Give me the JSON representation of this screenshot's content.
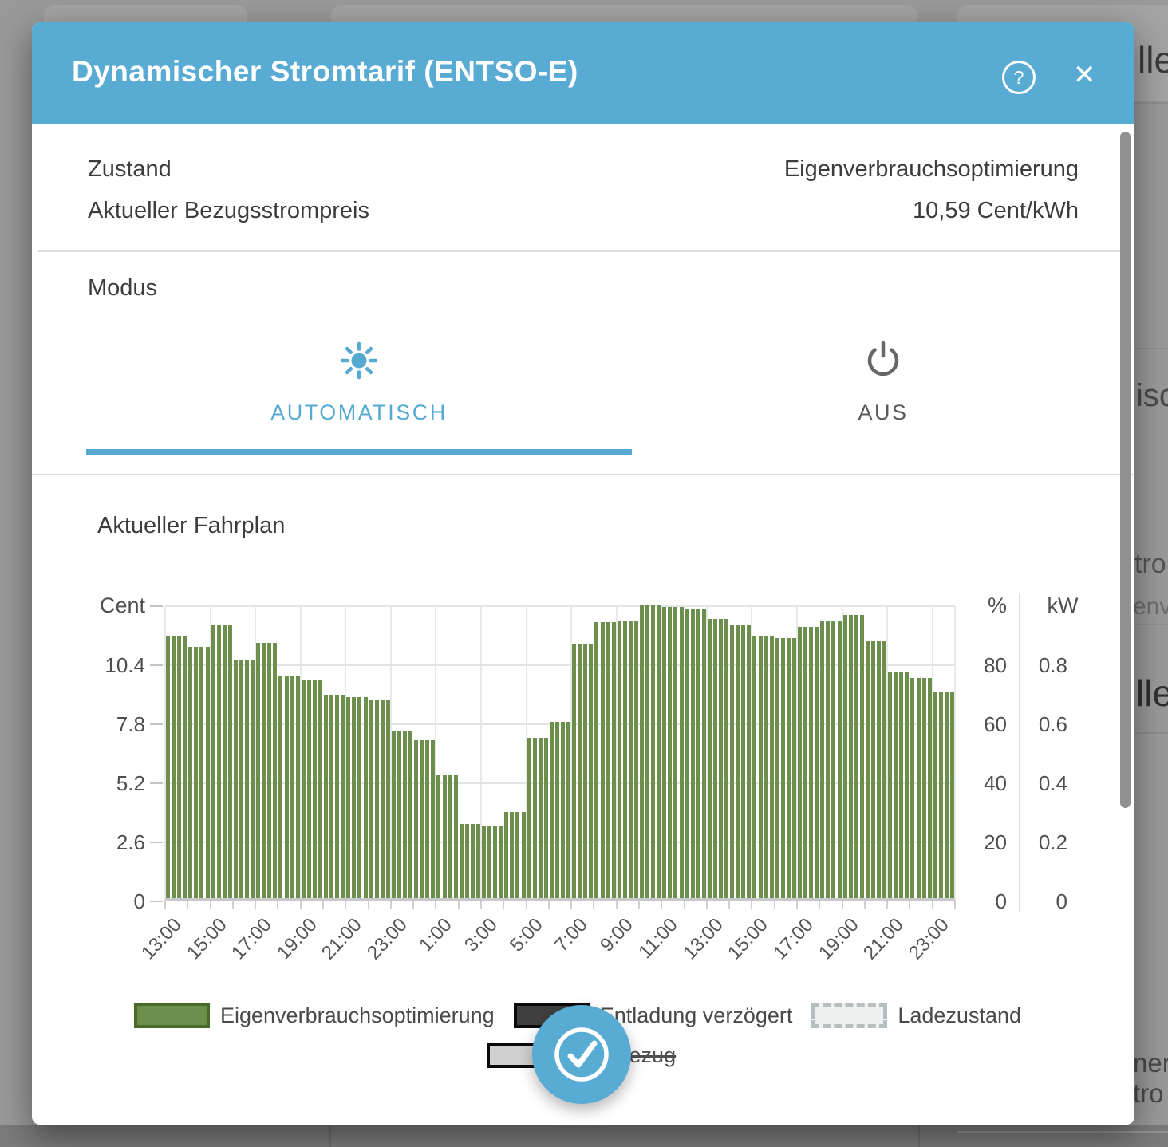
{
  "backdrop": {
    "fragments": [
      "lle",
      "isc",
      "tron",
      "env",
      "lle",
      "ner",
      "tro"
    ]
  },
  "modal": {
    "title": "Dynamischer Stromtarif (ENTSO-E)",
    "help_icon": "?",
    "close_icon": "✕",
    "status": {
      "rows": [
        {
          "label": "Zustand",
          "value": "Eigenverbrauchsoptimierung"
        },
        {
          "label": "Aktueller Bezugsstrompreis",
          "value": "10,59 Cent/kWh"
        }
      ]
    },
    "modus": {
      "label": "Modus",
      "tabs": [
        {
          "label": "AUTOMATISCH",
          "icon": "sun-icon",
          "active": true
        },
        {
          "label": "AUS",
          "icon": "power-icon",
          "active": false
        }
      ]
    },
    "schedule_title": "Aktueller Fahrplan",
    "legend": {
      "rows": [
        [
          {
            "label": "Eigenverbrauchsoptimierung",
            "swatch": "green-solid",
            "strikethrough": false
          },
          {
            "label": "Entladung verzögert",
            "swatch": "dark-solid",
            "strikethrough": false
          },
          {
            "label": "Ladezustand",
            "swatch": "dashed-light",
            "strikethrough": false
          }
        ],
        [
          {
            "label": "Netzbezug",
            "swatch": "gray-solid",
            "strikethrough": true
          }
        ]
      ]
    },
    "confirm_button": {
      "icon": "check-icon"
    }
  },
  "colors": {
    "header_blue": "#58abd3",
    "accent_blue": "#56aad2",
    "bar_green": "#6d8f4e",
    "legend_green_border": "#486c26"
  },
  "chart_data": {
    "type": "bar",
    "title": "Aktueller Fahrplan",
    "grid": true,
    "legend_position": "bottom",
    "bar_interval_minutes": 15,
    "left_axis": {
      "label": "Cent",
      "ticks": [
        0,
        2.6,
        5.2,
        7.8,
        10.4
      ],
      "max": 13
    },
    "right_axis_percent": {
      "label": "%",
      "ticks": [
        0,
        20,
        40,
        60,
        80
      ],
      "max": 100
    },
    "right_axis_kw": {
      "label": "kW",
      "ticks": [
        0,
        0.2,
        0.4,
        0.6,
        0.8
      ],
      "max": 1
    },
    "x_tick_labels": [
      "13:00",
      "15:00",
      "17:00",
      "19:00",
      "21:00",
      "23:00",
      "1:00",
      "3:00",
      "5:00",
      "7:00",
      "9:00",
      "11:00",
      "13:00",
      "15:00",
      "17:00",
      "19:00",
      "21:00",
      "23:00"
    ],
    "series": [
      {
        "name": "Eigenverbrauchsoptimierung",
        "color": "#6d8f4e",
        "hours": [
          "13:00",
          "14:00",
          "15:00",
          "16:00",
          "17:00",
          "18:00",
          "19:00",
          "20:00",
          "21:00",
          "22:00",
          "23:00",
          "0:00",
          "1:00",
          "2:00",
          "3:00",
          "4:00",
          "5:00",
          "6:00",
          "7:00",
          "8:00",
          "9:00",
          "10:00",
          "11:00",
          "12:00",
          "13:00",
          "14:00",
          "15:00",
          "16:00",
          "17:00",
          "18:00",
          "19:00",
          "20:00",
          "21:00",
          "22:00",
          "23:00"
        ],
        "values_cent": [
          11.7,
          11.2,
          12.2,
          10.6,
          11.4,
          9.9,
          9.75,
          9.1,
          9.0,
          8.85,
          7.5,
          7.1,
          5.55,
          3.4,
          3.3,
          3.95,
          7.2,
          7.9,
          11.35,
          12.3,
          12.35,
          13.05,
          12.95,
          12.9,
          12.45,
          12.15,
          11.7,
          11.6,
          12.1,
          12.35,
          12.6,
          11.5,
          10.1,
          9.85,
          9.25
        ]
      }
    ]
  }
}
